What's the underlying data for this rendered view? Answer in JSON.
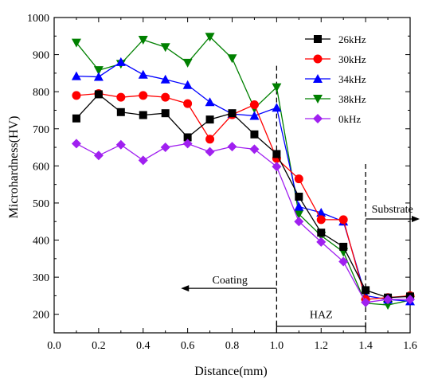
{
  "chart_data": {
    "type": "line",
    "title": "",
    "xlabel": "Distance(mm)",
    "ylabel": "Microhardness(HV)",
    "xlim": [
      0.0,
      1.6
    ],
    "ylim": [
      150,
      1000
    ],
    "x_ticks": [
      "0.0",
      "0.2",
      "0.4",
      "0.6",
      "0.8",
      "1.0",
      "1.2",
      "1.4",
      "1.6"
    ],
    "y_ticks": [
      "200",
      "300",
      "400",
      "500",
      "600",
      "700",
      "800",
      "900",
      "1000"
    ],
    "grid": false,
    "legend_position": "top-right",
    "x": [
      0.1,
      0.2,
      0.3,
      0.4,
      0.5,
      0.6,
      0.7,
      0.8,
      0.9,
      1.0,
      1.1,
      1.2,
      1.3,
      1.4,
      1.5,
      1.6
    ],
    "series": [
      {
        "name": "26kHz",
        "color": "#000000",
        "marker": "square",
        "values": [
          728,
          793,
          745,
          737,
          742,
          677,
          725,
          742,
          685,
          632,
          517,
          420,
          382,
          265,
          245,
          248
        ]
      },
      {
        "name": "30kHz",
        "color": "#ff0000",
        "marker": "circle",
        "values": [
          790,
          795,
          785,
          790,
          785,
          768,
          672,
          738,
          765,
          620,
          565,
          455,
          455,
          240,
          245,
          250
        ]
      },
      {
        "name": "34kHz",
        "color": "#0000ff",
        "marker": "triangle-up",
        "values": [
          842,
          840,
          880,
          846,
          833,
          818,
          772,
          740,
          735,
          757,
          490,
          474,
          450,
          250,
          240,
          235
        ]
      },
      {
        "name": "38kHz",
        "color": "#008000",
        "marker": "triangle-down",
        "values": [
          932,
          858,
          875,
          940,
          920,
          878,
          948,
          890,
          755,
          812,
          470,
          412,
          368,
          230,
          225,
          238
        ]
      },
      {
        "name": "0kHz",
        "color": "#a020f0",
        "marker": "diamond",
        "values": [
          660,
          628,
          657,
          615,
          650,
          660,
          638,
          652,
          645,
          598,
          450,
          395,
          342,
          232,
          240,
          240
        ]
      }
    ],
    "annotations": {
      "coating": "Coating",
      "haz": "HAZ",
      "substrate": "Substrate",
      "boundary_x": [
        1.0,
        1.4
      ]
    }
  }
}
